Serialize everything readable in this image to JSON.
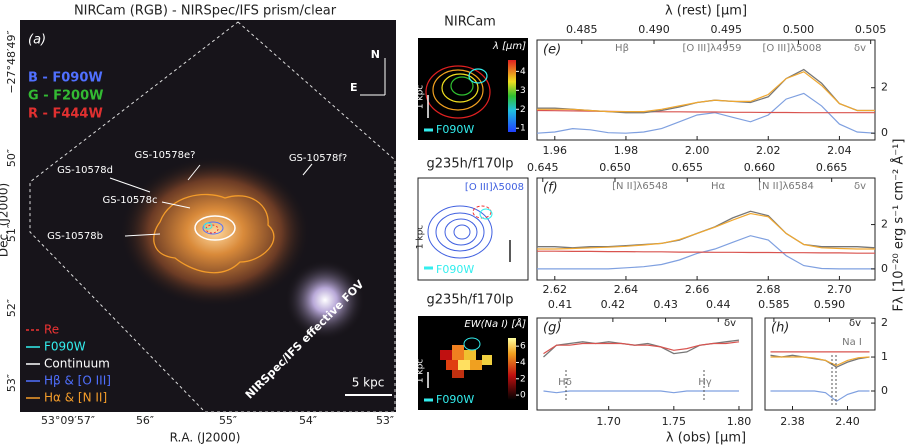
{
  "image_panel": {
    "title": "NIRCam (RGB) - NIRSpec/IFS prism/clear",
    "letter": "(a)",
    "filters": [
      "B - F090W",
      "G - F200W",
      "R - F444W"
    ],
    "compass": [
      "N",
      "E"
    ],
    "sources": [
      "GS-10578e?",
      "GS-10578f?",
      "GS-10578d",
      "GS-10578c",
      "GS-10578b"
    ],
    "legend": [
      "Re",
      "F090W",
      "Continuum",
      "Hβ & [O III]",
      "Hα & [N II]"
    ],
    "fov_label": "NIRSpec/IFS effective FOV",
    "scale_bar": "5 kpc",
    "dec_label": "Dec. (J2000)",
    "ra_label": "R.A. (J2000)",
    "dec_ticks": [
      "−27°48′49″",
      "50″",
      "51″",
      "52″",
      "53″"
    ],
    "ra_ticks": [
      "53°09′57″",
      "56″",
      "55″",
      "54″",
      "53″"
    ]
  },
  "map_panels": [
    {
      "title": "NIRCam",
      "colorbar_label": "λ [μm]",
      "colorbar_lim": [
        0.8,
        4.6
      ],
      "colorbar_ticks": [
        1,
        2,
        3,
        4
      ],
      "scale": "1 kpc",
      "psf": "F090W"
    },
    {
      "title": "g235h/f170lp",
      "line": "[O III]λ5008",
      "scale": "1 kpc",
      "psf": "F090W"
    },
    {
      "title": "g235h/f170lp",
      "colorbar_label": "EW(Na I) [Å]",
      "colorbar_lim": [
        -0.6,
        7
      ],
      "colorbar_ticks": [
        0,
        2,
        4,
        6
      ],
      "scale": "1 kpc",
      "psf": "F090W"
    }
  ],
  "spectra": {
    "rest_label": "λ (rest) [μm]",
    "obs_label": "λ (obs) [μm]",
    "flux_label": "Fλ [10⁻²⁰ erg s⁻¹ cm⁻² Å⁻¹]"
  },
  "chart_data": [
    {
      "type": "line",
      "letter": "(e)",
      "annotations": [
        "Hβ",
        "[O III]λ4959",
        "[O III]λ5008",
        "δv"
      ],
      "x": [
        1.955,
        1.96,
        1.965,
        1.97,
        1.975,
        1.98,
        1.985,
        1.99,
        1.995,
        2.0,
        2.005,
        2.01,
        2.015,
        2.02,
        2.025,
        2.03,
        2.035,
        2.04,
        2.045,
        2.05
      ],
      "xlim": [
        1.955,
        2.05
      ],
      "xticks": [
        1.96,
        1.98,
        {
          "value": 2,
          "label": "2.00"
        },
        2.02,
        2.04
      ],
      "x2lim": [
        0.4819,
        0.5053
      ],
      "x2ticks": [
        0.485,
        {
          "value": 0.49,
          "label": "0.490"
        },
        0.495,
        {
          "value": 0.5,
          "label": "0.500"
        },
        0.505
      ],
      "ylim": [
        -0.3,
        4.1
      ],
      "yticks": [
        0,
        2
      ],
      "series": [
        {
          "color": "#7fa0e0",
          "values": [
            0,
            0.05,
            0.2,
            0.15,
            0.02,
            0,
            0.05,
            0.2,
            0.5,
            0.8,
            0.9,
            0.7,
            0.5,
            0.8,
            1.5,
            1.75,
            1.2,
            0.4,
            0.05,
            0
          ]
        },
        {
          "color": "#d9534f",
          "values": [
            1.0,
            0.99,
            0.98,
            0.97,
            0.96,
            0.95,
            0.95,
            0.94,
            0.94,
            0.93,
            0.93,
            0.92,
            0.92,
            0.91,
            0.91,
            0.9,
            0.9,
            0.9,
            0.9,
            0.9
          ]
        },
        {
          "color": "#777777",
          "values": [
            1.1,
            1.1,
            1.05,
            1.0,
            0.95,
            0.9,
            0.9,
            1.0,
            1.15,
            1.35,
            1.45,
            1.4,
            1.35,
            1.6,
            2.4,
            2.8,
            2.2,
            1.3,
            1.0,
            1.0
          ]
        },
        {
          "color": "#f0a830",
          "values": [
            1.05,
            1.05,
            1.05,
            1.0,
            0.95,
            0.95,
            0.95,
            1.05,
            1.2,
            1.35,
            1.45,
            1.4,
            1.4,
            1.7,
            2.4,
            2.7,
            2.1,
            1.3,
            1.0,
            1.0
          ]
        }
      ]
    },
    {
      "type": "line",
      "letter": "(f)",
      "annotations": [
        "[N II]λ6548",
        "Hα",
        "[N II]λ6584",
        "δv"
      ],
      "x": [
        2.615,
        2.62,
        2.625,
        2.63,
        2.635,
        2.64,
        2.645,
        2.65,
        2.655,
        2.66,
        2.665,
        2.67,
        2.675,
        2.68,
        2.685,
        2.69,
        2.695,
        2.7,
        2.705,
        2.71
      ],
      "xlim": [
        2.615,
        2.71
      ],
      "xticks": [
        2.62,
        2.64,
        2.66,
        2.68,
        {
          "value": 2.7,
          "label": "2.70"
        }
      ],
      "x2lim": [
        0.6446,
        0.668
      ],
      "x2ticks": [
        0.645,
        {
          "value": 0.65,
          "label": "0.650"
        },
        0.655,
        {
          "value": 0.66,
          "label": "0.660"
        },
        0.665
      ],
      "ylim": [
        -0.5,
        4.1
      ],
      "yticks": [
        0,
        2
      ],
      "series": [
        {
          "color": "#7fa0e0",
          "values": [
            0,
            0,
            0,
            0,
            0,
            0.05,
            0.1,
            0.2,
            0.4,
            0.7,
            0.9,
            1.2,
            1.5,
            1.3,
            0.6,
            0.15,
            0.02,
            0,
            0,
            0
          ]
        },
        {
          "color": "#d9534f",
          "values": [
            0.8,
            0.8,
            0.79,
            0.79,
            0.78,
            0.78,
            0.77,
            0.77,
            0.76,
            0.76,
            0.75,
            0.75,
            0.74,
            0.74,
            0.73,
            0.73,
            0.72,
            0.72,
            0.71,
            0.71
          ]
        },
        {
          "color": "#777777",
          "values": [
            1.0,
            1.0,
            0.95,
            1.0,
            1.0,
            1.05,
            1.1,
            1.15,
            1.3,
            1.6,
            1.9,
            2.3,
            2.6,
            2.4,
            1.6,
            1.1,
            1.0,
            1.0,
            1.0,
            0.95
          ]
        },
        {
          "color": "#f0a830",
          "values": [
            0.9,
            0.9,
            0.92,
            0.95,
            0.98,
            1.02,
            1.08,
            1.15,
            1.32,
            1.6,
            1.88,
            2.2,
            2.5,
            2.35,
            1.6,
            1.1,
            0.95,
            0.92,
            0.9,
            0.9
          ]
        }
      ]
    },
    {
      "type": "line",
      "letter": "(g)",
      "annotations": [
        "δv",
        "Hδ",
        "Hγ"
      ],
      "x": [
        1.65,
        1.66,
        1.67,
        1.68,
        1.69,
        1.7,
        1.71,
        1.72,
        1.73,
        1.74,
        1.75,
        1.76,
        1.77,
        1.78,
        1.79,
        1.8
      ],
      "xlim": [
        1.645,
        1.81
      ],
      "xticks": [
        {
          "value": 1.7,
          "label": "1.70"
        },
        1.75,
        {
          "value": 1.8,
          "label": "1.80"
        }
      ],
      "x2lim": [
        0.4056,
        0.4464
      ],
      "x2ticks": [
        0.41,
        0.42,
        0.43,
        0.44
      ],
      "ylim": [
        -0.56,
        2.15
      ],
      "series": [
        {
          "color": "#7fa0e0",
          "values": [
            0,
            -0.05,
            0,
            0,
            0,
            0,
            0,
            0,
            0,
            0,
            -0.05,
            0,
            0,
            0,
            0,
            0
          ]
        },
        {
          "color": "#777777",
          "values": [
            1.0,
            1.35,
            1.4,
            1.45,
            1.4,
            1.45,
            1.4,
            1.35,
            1.4,
            1.3,
            1.1,
            1.15,
            1.35,
            1.4,
            1.45,
            1.5
          ]
        },
        {
          "color": "#d9534f",
          "values": [
            1.1,
            1.35,
            1.35,
            1.4,
            1.4,
            1.4,
            1.4,
            1.35,
            1.35,
            1.3,
            1.2,
            1.25,
            1.35,
            1.4,
            1.4,
            1.45
          ]
        }
      ]
    },
    {
      "type": "line",
      "letter": "(h)",
      "annotations": [
        "δv",
        "Na I"
      ],
      "x": [
        2.372,
        2.376,
        2.38,
        2.384,
        2.388,
        2.392,
        2.396,
        2.4,
        2.404,
        2.408
      ],
      "xlim": [
        2.37,
        2.41
      ],
      "xticks": [
        2.38,
        {
          "value": 2.4,
          "label": "2.40"
        }
      ],
      "x2lim": [
        0.5842,
        0.5941
      ],
      "x2ticks": [
        0.585,
        {
          "value": 0.59,
          "label": "0.590"
        }
      ],
      "ylim": [
        -0.56,
        2.15
      ],
      "yticks": [
        0,
        1,
        2
      ],
      "series": [
        {
          "color": "#7fa0e0",
          "values": [
            0,
            0,
            0,
            0,
            0,
            -0.05,
            -0.3,
            -0.1,
            0,
            0
          ]
        },
        {
          "color": "#d9534f",
          "values": [
            1.15,
            1.15,
            1.15,
            1.15,
            1.15,
            1.15,
            1.15,
            1.15,
            1.15,
            1.15
          ]
        },
        {
          "color": "#777777",
          "values": [
            1.05,
            1.0,
            1.05,
            1.0,
            0.95,
            0.9,
            0.7,
            0.85,
            0.95,
            1.0
          ]
        },
        {
          "color": "#f0a830",
          "values": [
            1.0,
            1.0,
            1.0,
            1.0,
            0.97,
            0.9,
            0.75,
            0.9,
            0.98,
            1.0
          ]
        }
      ]
    }
  ]
}
